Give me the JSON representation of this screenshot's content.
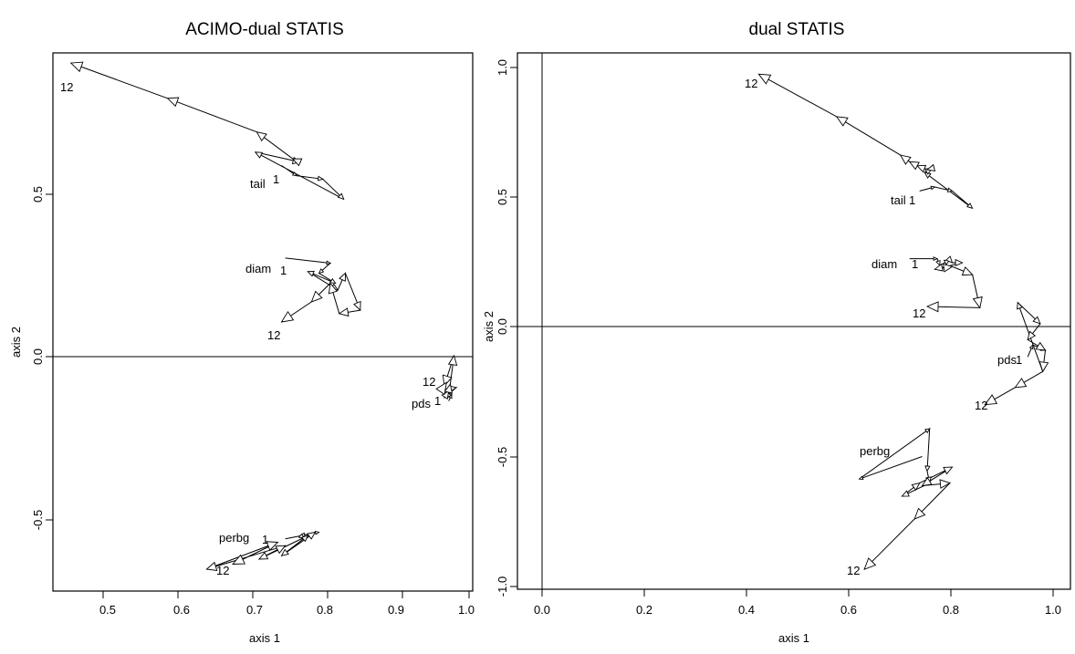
{
  "chart_data": [
    {
      "type": "line",
      "title": "ACIMO-dual STATIS",
      "xlabel": "axis  1",
      "ylabel": "axis  2",
      "xlim": [
        0.44,
        1.0
      ],
      "ylim": [
        -0.72,
        0.88
      ],
      "xticks": [
        "0.5",
        "0.6",
        "0.7",
        "0.8",
        "0.9",
        "1.0"
      ],
      "yticks": [
        "-0.5",
        "0.0",
        "0.5"
      ],
      "reference_lines": {
        "horizontal": 0
      },
      "series": [
        {
          "name": "tail",
          "first_label": "1",
          "last_label": "12",
          "x": [
            0.745,
            0.765,
            0.8,
            0.828,
            0.71,
            0.77,
            0.76,
            0.712,
            0.593,
            0.464
          ],
          "y": [
            0.545,
            0.515,
            0.505,
            0.445,
            0.585,
            0.555,
            0.565,
            0.645,
            0.745,
            0.85
          ]
        },
        {
          "name": "diam",
          "first_label": "1",
          "last_label": "12",
          "x": [
            0.75,
            0.81,
            0.795,
            0.817,
            0.78,
            0.82,
            0.83,
            0.85,
            0.822,
            0.81,
            0.785,
            0.745
          ],
          "y": [
            0.27,
            0.255,
            0.225,
            0.195,
            0.23,
            0.175,
            0.225,
            0.115,
            0.105,
            0.195,
            0.14,
            0.08
          ]
        },
        {
          "name": "pds",
          "first_label": "1",
          "last_label": "12",
          "x": [
            0.968,
            0.972,
            0.965,
            0.978,
            0.962,
            0.968,
            0.97,
            0.975,
            0.962,
            0.965
          ],
          "y": [
            -0.155,
            -0.135,
            -0.12,
            -0.115,
            -0.145,
            -0.125,
            -0.105,
            -0.02,
            -0.11,
            -0.1
          ]
        },
        {
          "name": "perbg",
          "first_label": "1",
          "last_label": "12",
          "x": [
            0.75,
            0.795,
            0.77,
            0.775,
            0.78,
            0.745,
            0.79,
            0.715,
            0.75,
            0.645,
            0.74,
            0.68
          ],
          "y": [
            -0.565,
            -0.545,
            -0.555,
            -0.565,
            -0.555,
            -0.615,
            -0.545,
            -0.625,
            -0.585,
            -0.655,
            -0.575,
            -0.64
          ]
        }
      ],
      "labels": {
        "tail": {
          "name": "tail",
          "first": "1",
          "last": "12"
        },
        "diam": {
          "name": "diam",
          "first": "1",
          "last": "12"
        },
        "pds": {
          "name": "pds",
          "first": "1",
          "last": "12"
        },
        "perbg": {
          "name": "perbg",
          "first": "1",
          "last": "12"
        }
      }
    },
    {
      "type": "line",
      "title": "dual STATIS",
      "xlabel": "axis 1",
      "ylabel": "axis 2",
      "xlim": [
        -0.05,
        1.05
      ],
      "ylim": [
        -1.0,
        1.02
      ],
      "xticks": [
        "0.0",
        "0.2",
        "0.4",
        "0.6",
        "0.8",
        "1.0"
      ],
      "yticks": [
        "-1.0",
        "-0.5",
        "0.0",
        "0.5",
        "1.0"
      ],
      "reference_lines": {
        "horizontal": 0,
        "vertical": 0
      },
      "series": [
        {
          "name": "tail",
          "first_label": "1",
          "last_label": "12",
          "x": [
            0.75,
            0.78,
            0.815,
            0.855,
            0.76,
            0.775,
            0.765,
            0.745,
            0.73,
            0.712,
            0.585,
            0.43
          ],
          "y": [
            0.5,
            0.515,
            0.5,
            0.435,
            0.57,
            0.585,
            0.58,
            0.595,
            0.61,
            0.635,
            0.78,
            0.94
          ]
        },
        {
          "name": "diam",
          "first_label": "1",
          "last_label": "12",
          "x": [
            0.73,
            0.785,
            0.79,
            0.81,
            0.815,
            0.835,
            0.78,
            0.815,
            0.855,
            0.87,
            0.765
          ],
          "y": [
            0.245,
            0.245,
            0.22,
            0.24,
            0.23,
            0.23,
            0.205,
            0.215,
            0.185,
            0.06,
            0.065
          ]
        },
        {
          "name": "pds",
          "first_label": "1",
          "last_label": "12",
          "x": [
            0.965,
            0.975,
            1.0,
            0.995,
            0.945,
            0.99,
            0.965,
            1.0,
            0.995,
            0.94,
            0.88
          ],
          "y": [
            -0.125,
            -0.08,
            -0.1,
            -0.18,
            0.08,
            0.0,
            -0.06,
            -0.1,
            -0.18,
            -0.24,
            -0.305
          ]
        },
        {
          "name": "perbg",
          "first_label": "1",
          "last_label": "12",
          "x": [
            0.755,
            0.63,
            0.77,
            0.765,
            0.77,
            0.715,
            0.75,
            0.815,
            0.755,
            0.81,
            0.74,
            0.64
          ],
          "y": [
            -0.5,
            -0.585,
            -0.395,
            -0.555,
            -0.6,
            -0.65,
            -0.6,
            -0.54,
            -0.61,
            -0.6,
            -0.735,
            -0.925
          ]
        }
      ],
      "labels": {
        "tail": {
          "name": "tail",
          "first": "1",
          "last": "12"
        },
        "diam": {
          "name": "diam",
          "first": "1",
          "last": "12"
        },
        "pds": {
          "name": "pds",
          "first": "1",
          "last": "12"
        },
        "perbg": {
          "name": "perbg",
          "first": "1",
          "last": "12"
        }
      }
    }
  ]
}
